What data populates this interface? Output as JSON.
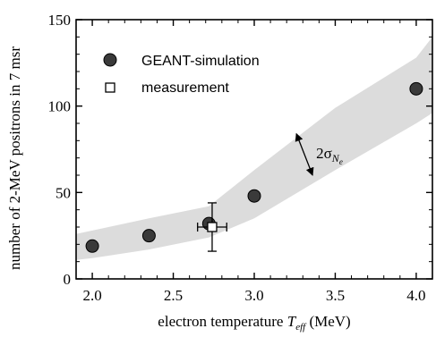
{
  "chart_data": {
    "type": "scatter",
    "xlabel_prefix": "electron temperature ",
    "xlabel_symbol": "T",
    "xlabel_subscript": "eff",
    "xlabel_unit": " (MeV)",
    "ylabel": "number of 2-MeV positrons in 7 msr",
    "xlim": [
      1.9,
      4.1
    ],
    "ylim": [
      0,
      150
    ],
    "x_ticks": [
      2.0,
      2.5,
      3.0,
      3.5,
      4.0
    ],
    "x_tick_labels": [
      "2.0",
      "2.5",
      "3.0",
      "3.5",
      "4.0"
    ],
    "y_ticks": [
      0,
      50,
      100,
      150
    ],
    "y_tick_labels": [
      "0",
      "50",
      "100",
      "150"
    ],
    "legend_position": "top-left",
    "grid": false,
    "series": [
      {
        "name": "GEANT-simulation",
        "marker": "filled-circle",
        "color": "#3a3a3a",
        "points": [
          {
            "x": 2.0,
            "y": 19
          },
          {
            "x": 2.35,
            "y": 25
          },
          {
            "x": 2.72,
            "y": 32
          },
          {
            "x": 3.0,
            "y": 48
          },
          {
            "x": 4.0,
            "y": 110
          }
        ]
      },
      {
        "name": "measurement",
        "marker": "open-square",
        "color": "#000000",
        "points": [
          {
            "x": 2.74,
            "y": 30,
            "x_err": 0.09,
            "y_err_minus": 14,
            "y_err_plus": 14
          }
        ]
      }
    ],
    "band": {
      "color": "#dcdcdc",
      "x": [
        1.9,
        2.0,
        2.35,
        2.72,
        3.0,
        3.5,
        4.0,
        4.1
      ],
      "upper": [
        26,
        28,
        35,
        42,
        63,
        99,
        128,
        140
      ],
      "lower": [
        11,
        12,
        17,
        24,
        35,
        63,
        90,
        96
      ]
    },
    "annotation": {
      "symbol": "2σ",
      "subscript_main": "N",
      "subscript_sub": "e",
      "arrow_from": {
        "x": 3.26,
        "y": 84
      },
      "arrow_to": {
        "x": 3.36,
        "y": 60
      }
    }
  }
}
